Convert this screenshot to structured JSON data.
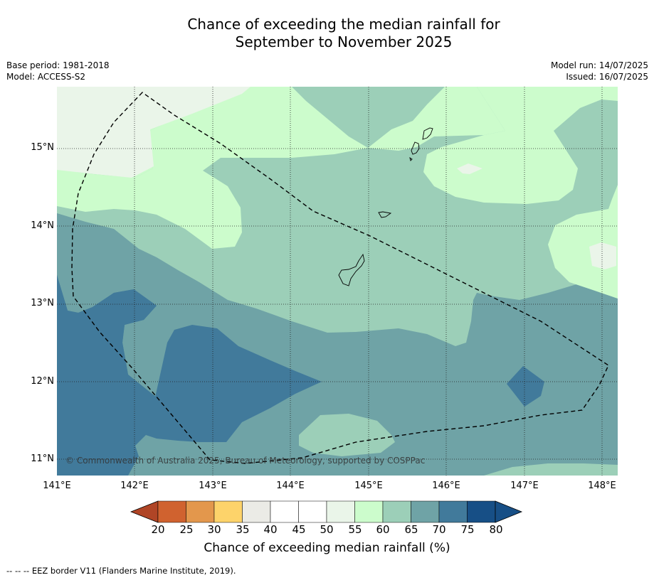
{
  "title_line1": "Chance of exceeding the median rainfall for",
  "title_line2": "September to November 2025",
  "base_period": "Base period: 1981-2018",
  "model": "Model: ACCESS-S2",
  "model_run": "Model run: 14/07/2025",
  "issued": "Issued: 16/07/2025",
  "copyright": "© Commonwealth of Australia 2025, Bureau of Meteorology, supported by COSPPac",
  "lat_labels": [
    "15°N",
    "14°N",
    "13°N",
    "12°N",
    "11°N"
  ],
  "lon_labels": [
    "141°E",
    "142°E",
    "143°E",
    "144°E",
    "145°E",
    "146°E",
    "147°E",
    "148°E"
  ],
  "colorbar": {
    "title": "Chance of exceeding median rainfall (%)",
    "ticks": [
      "20",
      "25",
      "30",
      "35",
      "40",
      "45",
      "50",
      "55",
      "60",
      "65",
      "70",
      "75",
      "80"
    ],
    "colors": [
      "#b04526",
      "#d0622f",
      "#e3974c",
      "#fdd36a",
      "#ebebe6",
      "#ffffff",
      "#ffffff",
      "#eaf5e9",
      "#ccfccc",
      "#9ccfb8",
      "#6fa3a6",
      "#417a9b",
      "#174f86"
    ]
  },
  "legend_footnote": "--  --  -- EEZ border V11 (Flanders Marine Institute, 2019)."
}
